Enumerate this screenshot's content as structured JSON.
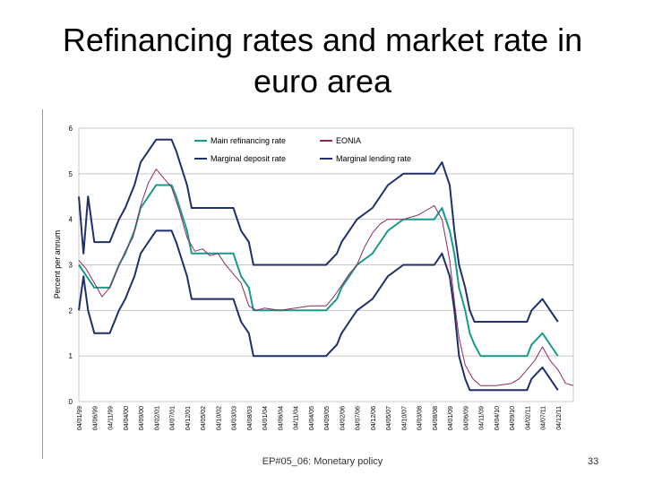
{
  "slide": {
    "title_line1": "Refinancing rates and market rate in",
    "title_line2": "euro area",
    "footer": "EP#05_06: Monetary policy",
    "page_number": "33"
  },
  "chart_data": {
    "type": "line",
    "ylabel": "Percent per annum",
    "ylim": [
      0,
      6
    ],
    "yticks": [
      "0",
      "1",
      "2",
      "3",
      "4",
      "5",
      "6"
    ],
    "grid": true,
    "legend_position": "top",
    "x_tick_labels": [
      "04/01/99",
      "04/06/99",
      "04/11/99",
      "04/04/00",
      "04/09/00",
      "04/02/01",
      "04/07/01",
      "04/12/01",
      "04/05/02",
      "04/10/02",
      "04/03/03",
      "04/08/03",
      "04/01/04",
      "04/06/04",
      "04/11/04",
      "04/04/05",
      "04/09/05",
      "04/02/06",
      "04/07/06",
      "04/12/06",
      "04/05/07",
      "04/10/07",
      "04/03/08",
      "04/08/08",
      "04/01/09",
      "04/06/09",
      "04/11/09",
      "04/04/10",
      "04/09/10",
      "04/02/11",
      "04/07/11",
      "04/12/11"
    ],
    "series": [
      {
        "name": "Main refinancing rate",
        "color": "#1a9a8c",
        "points": [
          [
            0,
            3.0
          ],
          [
            1,
            2.5
          ],
          [
            2,
            2.5
          ],
          [
            2.6,
            3.0
          ],
          [
            3,
            3.25
          ],
          [
            3.3,
            3.5
          ],
          [
            3.6,
            3.75
          ],
          [
            4,
            4.25
          ],
          [
            4.5,
            4.5
          ],
          [
            5,
            4.75
          ],
          [
            6,
            4.75
          ],
          [
            6.3,
            4.5
          ],
          [
            7,
            3.75
          ],
          [
            7.3,
            3.25
          ],
          [
            8,
            3.25
          ],
          [
            9,
            3.25
          ],
          [
            10,
            3.25
          ],
          [
            10.5,
            2.75
          ],
          [
            11,
            2.5
          ],
          [
            11.3,
            2.0
          ],
          [
            12,
            2.0
          ],
          [
            13,
            2.0
          ],
          [
            14,
            2.0
          ],
          [
            15,
            2.0
          ],
          [
            16,
            2.0
          ],
          [
            16.7,
            2.25
          ],
          [
            17,
            2.5
          ],
          [
            17.5,
            2.75
          ],
          [
            18,
            3.0
          ],
          [
            19,
            3.25
          ],
          [
            19.5,
            3.5
          ],
          [
            20,
            3.75
          ],
          [
            21,
            4.0
          ],
          [
            22,
            4.0
          ],
          [
            23,
            4.0
          ],
          [
            23.5,
            4.25
          ],
          [
            24,
            3.75
          ],
          [
            24.3,
            3.25
          ],
          [
            24.6,
            2.5
          ],
          [
            25,
            2.0
          ],
          [
            25.3,
            1.5
          ],
          [
            25.6,
            1.25
          ],
          [
            26,
            1.0
          ],
          [
            27,
            1.0
          ],
          [
            28,
            1.0
          ],
          [
            29,
            1.0
          ],
          [
            29.3,
            1.25
          ],
          [
            30,
            1.5
          ],
          [
            30.5,
            1.25
          ],
          [
            31,
            1.0
          ]
        ]
      },
      {
        "name": "EONIA",
        "color": "#8b2a5a",
        "points": [
          [
            0,
            3.1
          ],
          [
            0.5,
            2.9
          ],
          [
            1,
            2.6
          ],
          [
            1.5,
            2.3
          ],
          [
            2,
            2.5
          ],
          [
            2.5,
            2.9
          ],
          [
            3,
            3.3
          ],
          [
            3.5,
            3.6
          ],
          [
            4,
            4.3
          ],
          [
            4.5,
            4.8
          ],
          [
            5,
            5.1
          ],
          [
            5.5,
            4.9
          ],
          [
            6,
            4.7
          ],
          [
            6.5,
            4.2
          ],
          [
            7,
            3.6
          ],
          [
            7.5,
            3.3
          ],
          [
            8,
            3.35
          ],
          [
            8.5,
            3.2
          ],
          [
            9,
            3.25
          ],
          [
            9.5,
            3.0
          ],
          [
            10,
            2.8
          ],
          [
            10.5,
            2.6
          ],
          [
            11,
            2.1
          ],
          [
            11.5,
            2.0
          ],
          [
            12,
            2.05
          ],
          [
            13,
            2.0
          ],
          [
            14,
            2.05
          ],
          [
            15,
            2.1
          ],
          [
            16,
            2.1
          ],
          [
            16.5,
            2.3
          ],
          [
            17,
            2.55
          ],
          [
            17.5,
            2.8
          ],
          [
            18,
            3.0
          ],
          [
            18.5,
            3.4
          ],
          [
            19,
            3.7
          ],
          [
            19.5,
            3.9
          ],
          [
            20,
            4.0
          ],
          [
            21,
            4.0
          ],
          [
            22,
            4.1
          ],
          [
            22.5,
            4.2
          ],
          [
            23,
            4.3
          ],
          [
            23.5,
            4.0
          ],
          [
            24,
            3.1
          ],
          [
            24.3,
            2.2
          ],
          [
            24.6,
            1.4
          ],
          [
            25,
            0.8
          ],
          [
            25.5,
            0.5
          ],
          [
            26,
            0.35
          ],
          [
            27,
            0.35
          ],
          [
            28,
            0.4
          ],
          [
            28.5,
            0.5
          ],
          [
            29,
            0.7
          ],
          [
            29.5,
            0.9
          ],
          [
            30,
            1.2
          ],
          [
            30.5,
            0.9
          ],
          [
            31,
            0.7
          ],
          [
            31.5,
            0.4
          ],
          [
            32,
            0.35
          ]
        ]
      },
      {
        "name": "Marginal deposit rate",
        "color": "#1f2f6b",
        "points": [
          [
            0,
            2.0
          ],
          [
            0.3,
            2.75
          ],
          [
            0.6,
            2.0
          ],
          [
            1,
            1.5
          ],
          [
            2,
            1.5
          ],
          [
            2.6,
            2.0
          ],
          [
            3,
            2.25
          ],
          [
            3.3,
            2.5
          ],
          [
            3.6,
            2.75
          ],
          [
            4,
            3.25
          ],
          [
            4.5,
            3.5
          ],
          [
            5,
            3.75
          ],
          [
            6,
            3.75
          ],
          [
            6.3,
            3.5
          ],
          [
            7,
            2.75
          ],
          [
            7.3,
            2.25
          ],
          [
            8,
            2.25
          ],
          [
            9,
            2.25
          ],
          [
            10,
            2.25
          ],
          [
            10.5,
            1.75
          ],
          [
            11,
            1.5
          ],
          [
            11.3,
            1.0
          ],
          [
            12,
            1.0
          ],
          [
            13,
            1.0
          ],
          [
            14,
            1.0
          ],
          [
            15,
            1.0
          ],
          [
            16,
            1.0
          ],
          [
            16.7,
            1.25
          ],
          [
            17,
            1.5
          ],
          [
            17.5,
            1.75
          ],
          [
            18,
            2.0
          ],
          [
            19,
            2.25
          ],
          [
            19.5,
            2.5
          ],
          [
            20,
            2.75
          ],
          [
            21,
            3.0
          ],
          [
            22,
            3.0
          ],
          [
            23,
            3.0
          ],
          [
            23.5,
            3.25
          ],
          [
            24,
            2.75
          ],
          [
            24.3,
            2.0
          ],
          [
            24.6,
            1.0
          ],
          [
            25,
            0.5
          ],
          [
            25.3,
            0.25
          ],
          [
            26,
            0.25
          ],
          [
            27,
            0.25
          ],
          [
            28,
            0.25
          ],
          [
            29,
            0.25
          ],
          [
            29.3,
            0.5
          ],
          [
            30,
            0.75
          ],
          [
            30.5,
            0.5
          ],
          [
            31,
            0.25
          ]
        ]
      },
      {
        "name": "Marginal lending rate",
        "color": "#1f2f6b",
        "points": [
          [
            0,
            4.5
          ],
          [
            0.3,
            3.25
          ],
          [
            0.6,
            4.5
          ],
          [
            1,
            3.5
          ],
          [
            2,
            3.5
          ],
          [
            2.6,
            4.0
          ],
          [
            3,
            4.25
          ],
          [
            3.3,
            4.5
          ],
          [
            3.6,
            4.75
          ],
          [
            4,
            5.25
          ],
          [
            4.5,
            5.5
          ],
          [
            5,
            5.75
          ],
          [
            6,
            5.75
          ],
          [
            6.3,
            5.5
          ],
          [
            7,
            4.75
          ],
          [
            7.3,
            4.25
          ],
          [
            8,
            4.25
          ],
          [
            9,
            4.25
          ],
          [
            10,
            4.25
          ],
          [
            10.5,
            3.75
          ],
          [
            11,
            3.5
          ],
          [
            11.3,
            3.0
          ],
          [
            12,
            3.0
          ],
          [
            13,
            3.0
          ],
          [
            14,
            3.0
          ],
          [
            15,
            3.0
          ],
          [
            16,
            3.0
          ],
          [
            16.7,
            3.25
          ],
          [
            17,
            3.5
          ],
          [
            17.5,
            3.75
          ],
          [
            18,
            4.0
          ],
          [
            19,
            4.25
          ],
          [
            19.5,
            4.5
          ],
          [
            20,
            4.75
          ],
          [
            21,
            5.0
          ],
          [
            22,
            5.0
          ],
          [
            23,
            5.0
          ],
          [
            23.5,
            5.25
          ],
          [
            24,
            4.75
          ],
          [
            24.3,
            3.75
          ],
          [
            24.6,
            3.0
          ],
          [
            25,
            2.5
          ],
          [
            25.3,
            2.0
          ],
          [
            25.6,
            1.75
          ],
          [
            26,
            1.75
          ],
          [
            27,
            1.75
          ],
          [
            28,
            1.75
          ],
          [
            29,
            1.75
          ],
          [
            29.3,
            2.0
          ],
          [
            30,
            2.25
          ],
          [
            30.5,
            2.0
          ],
          [
            31,
            1.75
          ]
        ]
      }
    ]
  }
}
